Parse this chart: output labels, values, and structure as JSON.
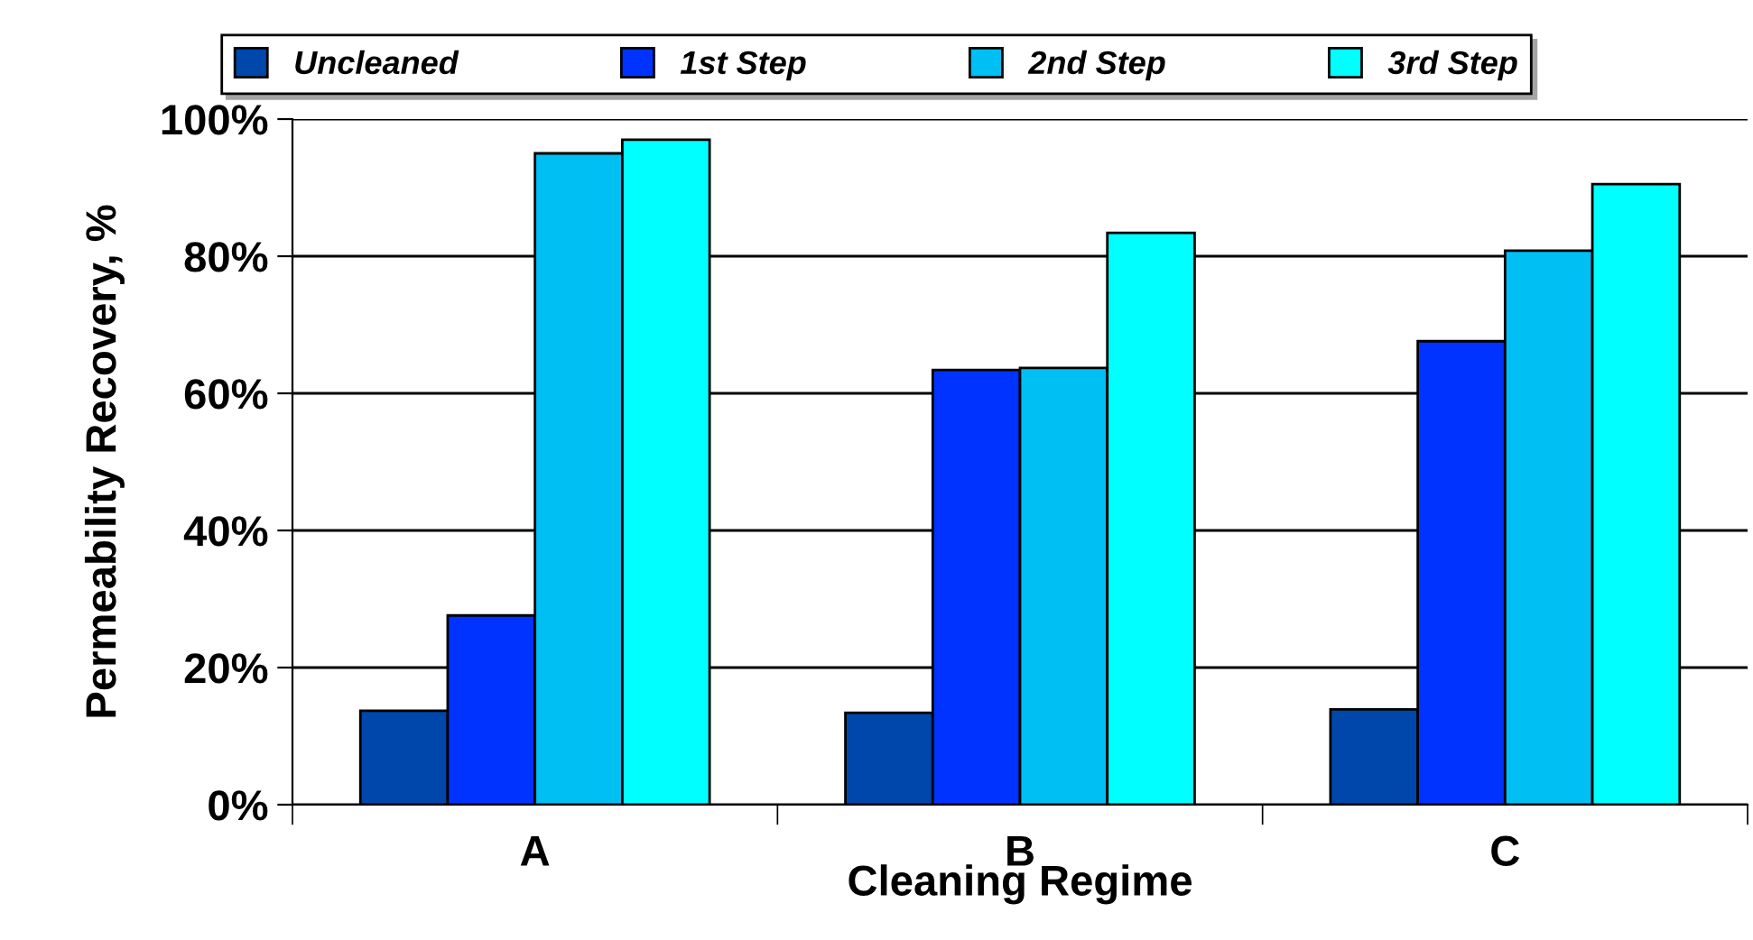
{
  "chart_data": {
    "type": "bar",
    "xlabel": "Cleaning Regime",
    "ylabel": "Permeability Recovery, %",
    "categories": [
      "A",
      "B",
      "C"
    ],
    "series": [
      {
        "name": "Uncleaned",
        "color": "#0047ab",
        "values": [
          13.7,
          13.4,
          13.9
        ]
      },
      {
        "name": "1st Step",
        "color": "#0033ff",
        "values": [
          27.6,
          63.4,
          67.6
        ]
      },
      {
        "name": "2nd Step",
        "color": "#00bff3",
        "values": [
          95,
          63.7,
          80.8
        ]
      },
      {
        "name": "3rd Step",
        "color": "#00ffff",
        "values": [
          97,
          83.4,
          90.5
        ]
      }
    ],
    "ylim": [
      0,
      100
    ],
    "yticks": [
      {
        "value": 0,
        "label": "0%"
      },
      {
        "value": 20,
        "label": "20%"
      },
      {
        "value": 40,
        "label": "40%"
      },
      {
        "value": 60,
        "label": "60%"
      },
      {
        "value": 80,
        "label": "80%"
      },
      {
        "value": 100,
        "label": "100%"
      }
    ],
    "grid": "y",
    "legend": "top"
  }
}
